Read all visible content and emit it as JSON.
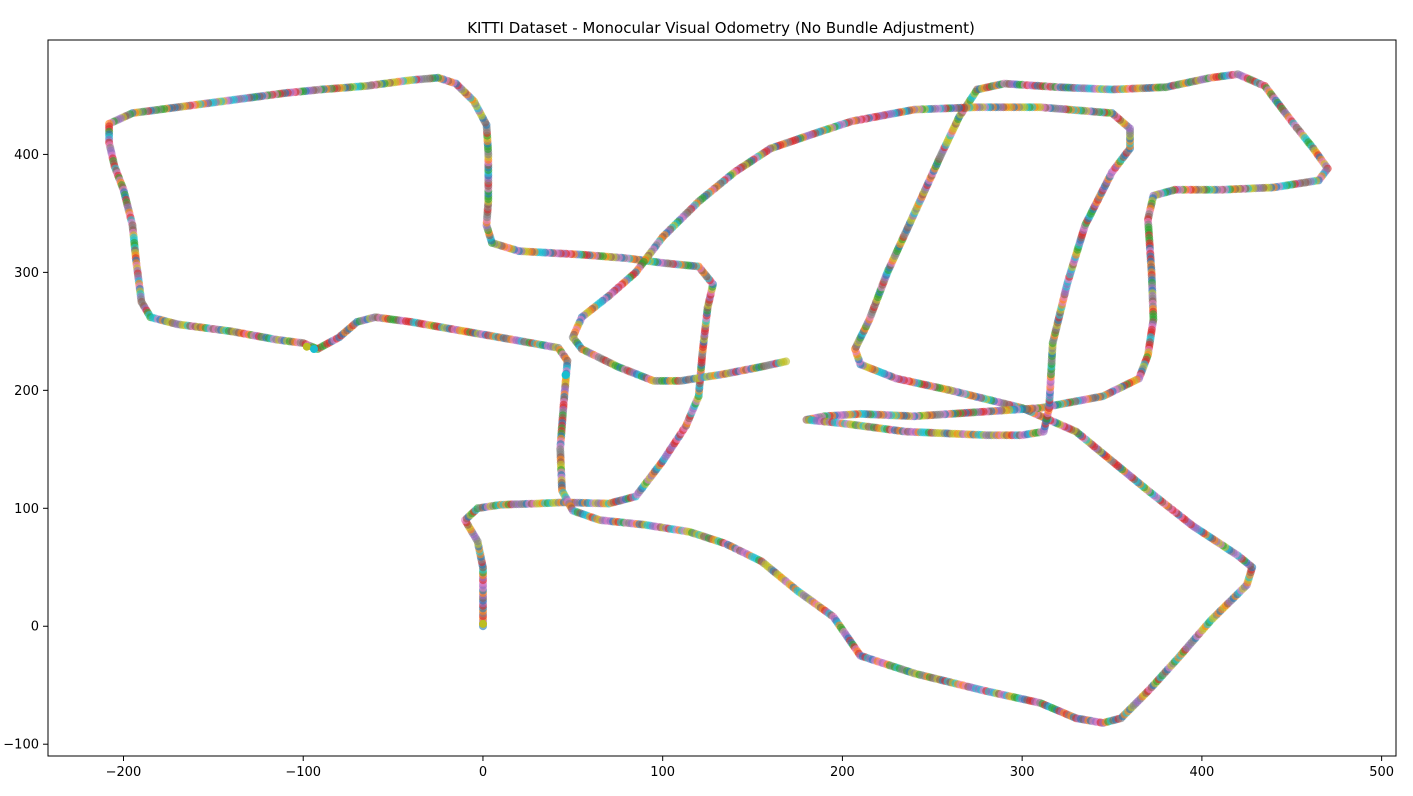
{
  "chart_data": {
    "type": "scatter",
    "title": "KITTI Dataset - Monocular Visual Odometry (No Bundle Adjustment)",
    "xlabel": "",
    "ylabel": "",
    "xlim": [
      -242,
      508
    ],
    "ylim": [
      -110,
      497
    ],
    "x_ticks": [
      -200,
      -100,
      0,
      100,
      200,
      300,
      400,
      500
    ],
    "y_ticks": [
      -100,
      0,
      100,
      200,
      300,
      400
    ],
    "grid": false,
    "legend": "none",
    "marker_colors": [
      "#1f77b4",
      "#ff7f0e",
      "#2ca02c",
      "#d62728",
      "#9467bd",
      "#8c564b",
      "#e377c2",
      "#7f7f7f",
      "#bcbd22",
      "#17becf"
    ],
    "marker_alpha": 0.6,
    "series": [
      {
        "path": [
          [
            0,
            0
          ],
          [
            0,
            50
          ],
          [
            -3,
            72
          ],
          [
            -10,
            90
          ],
          [
            -3,
            100
          ],
          [
            10,
            103
          ],
          [
            30,
            104
          ],
          [
            45,
            105
          ],
          [
            70,
            104
          ],
          [
            85,
            110
          ],
          [
            100,
            140
          ],
          [
            113,
            170
          ],
          [
            120,
            195
          ],
          [
            122,
            230
          ],
          [
            125,
            270
          ],
          [
            128,
            290
          ],
          [
            120,
            305
          ],
          [
            100,
            308
          ],
          [
            80,
            312
          ],
          [
            55,
            315
          ],
          [
            20,
            318
          ],
          [
            5,
            325
          ],
          [
            2,
            340
          ],
          [
            3,
            360
          ],
          [
            3,
            400
          ],
          [
            2,
            425
          ],
          [
            -5,
            445
          ],
          [
            -15,
            460
          ],
          [
            -25,
            465
          ],
          [
            -40,
            463
          ],
          [
            -65,
            458
          ],
          [
            -90,
            455
          ],
          [
            -110,
            452
          ],
          [
            -140,
            446
          ],
          [
            -170,
            440
          ],
          [
            -195,
            435
          ],
          [
            -208,
            426
          ],
          [
            -208,
            410
          ],
          [
            -205,
            390
          ],
          [
            -200,
            370
          ],
          [
            -195,
            340
          ],
          [
            -193,
            310
          ],
          [
            -190,
            275
          ],
          [
            -185,
            262
          ],
          [
            -170,
            256
          ],
          [
            -140,
            250
          ],
          [
            -115,
            243
          ],
          [
            -100,
            240
          ],
          [
            -92,
            235
          ],
          [
            -80,
            245
          ],
          [
            -70,
            258
          ],
          [
            -60,
            262
          ],
          [
            -40,
            258
          ],
          [
            -10,
            250
          ],
          [
            20,
            242
          ],
          [
            42,
            236
          ],
          [
            47,
            225
          ],
          [
            45,
            190
          ],
          [
            43,
            150
          ],
          [
            44,
            115
          ],
          [
            50,
            98
          ],
          [
            65,
            90
          ],
          [
            90,
            86
          ],
          [
            115,
            80
          ],
          [
            135,
            70
          ],
          [
            155,
            55
          ],
          [
            175,
            30
          ],
          [
            195,
            8
          ],
          [
            210,
            -25
          ],
          [
            240,
            -40
          ],
          [
            280,
            -55
          ],
          [
            310,
            -65
          ],
          [
            330,
            -78
          ],
          [
            345,
            -82
          ],
          [
            355,
            -78
          ],
          [
            370,
            -55
          ],
          [
            385,
            -30
          ],
          [
            405,
            5
          ],
          [
            425,
            35
          ],
          [
            428,
            50
          ],
          [
            420,
            60
          ],
          [
            395,
            85
          ],
          [
            370,
            115
          ],
          [
            350,
            140
          ],
          [
            330,
            165
          ],
          [
            300,
            185
          ],
          [
            260,
            200
          ],
          [
            230,
            210
          ],
          [
            210,
            222
          ],
          [
            207,
            235
          ],
          [
            215,
            260
          ],
          [
            225,
            300
          ],
          [
            240,
            350
          ],
          [
            255,
            400
          ],
          [
            265,
            432
          ],
          [
            275,
            455
          ],
          [
            290,
            460
          ],
          [
            320,
            457
          ],
          [
            350,
            455
          ],
          [
            380,
            457
          ],
          [
            405,
            465
          ],
          [
            420,
            468
          ],
          [
            435,
            458
          ],
          [
            450,
            428
          ],
          [
            462,
            405
          ],
          [
            470,
            388
          ],
          [
            465,
            378
          ],
          [
            440,
            372
          ],
          [
            410,
            370
          ],
          [
            385,
            370
          ],
          [
            373,
            365
          ],
          [
            370,
            345
          ],
          [
            372,
            300
          ],
          [
            373,
            260
          ],
          [
            370,
            230
          ],
          [
            365,
            210
          ],
          [
            345,
            195
          ],
          [
            310,
            185
          ],
          [
            280,
            182
          ],
          [
            240,
            178
          ],
          [
            210,
            180
          ],
          [
            190,
            178
          ],
          [
            180,
            175
          ],
          [
            200,
            172
          ],
          [
            235,
            165
          ],
          [
            280,
            162
          ],
          [
            300,
            162
          ],
          [
            312,
            165
          ],
          [
            315,
            185
          ],
          [
            317,
            240
          ],
          [
            325,
            290
          ],
          [
            335,
            340
          ],
          [
            350,
            385
          ],
          [
            360,
            405
          ],
          [
            360,
            422
          ],
          [
            350,
            435
          ],
          [
            310,
            440
          ],
          [
            275,
            440
          ],
          [
            240,
            438
          ],
          [
            205,
            428
          ],
          [
            185,
            418
          ],
          [
            160,
            405
          ],
          [
            140,
            385
          ],
          [
            120,
            360
          ],
          [
            100,
            330
          ],
          [
            85,
            300
          ],
          [
            70,
            280
          ],
          [
            55,
            262
          ],
          [
            50,
            245
          ],
          [
            55,
            235
          ],
          [
            75,
            220
          ],
          [
            95,
            208
          ],
          [
            110,
            208
          ],
          [
            135,
            214
          ],
          [
            155,
            220
          ],
          [
            170,
            225
          ]
        ]
      }
    ],
    "highlight_points": [
      {
        "x": -98,
        "y": 237,
        "color": "#bcbd22"
      },
      {
        "x": -94,
        "y": 235,
        "color": "#17becf"
      },
      {
        "x": 46,
        "y": 213,
        "color": "#17becf"
      },
      {
        "x": 0,
        "y": 2,
        "color": "#bcbd22"
      }
    ]
  }
}
